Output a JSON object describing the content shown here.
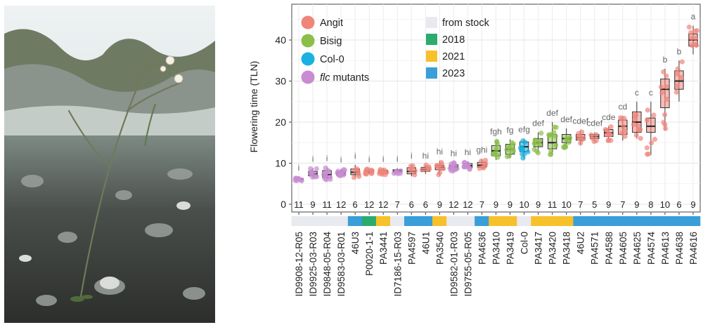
{
  "chart_data": {
    "type": "box",
    "ylabel": "Flowering time (TLN)",
    "ylim": [
      0,
      45
    ],
    "yticks": [
      0,
      10,
      20,
      30,
      40
    ],
    "grid": true,
    "legend_placement": "top-left",
    "groups_legend": [
      {
        "label": "Angit",
        "color": "#f0857a"
      },
      {
        "label": "Bisig",
        "color": "#8cbf4a"
      },
      {
        "label": "Col-0",
        "color": "#1ab1e0"
      },
      {
        "label_italic": "flc",
        "label_rest": " mutants",
        "color": "#c98bd2"
      }
    ],
    "origin_legend": [
      {
        "label": "from stock",
        "color": "#e8eaf0"
      },
      {
        "label": "2018",
        "color": "#2bab6c"
      },
      {
        "label": "2021",
        "color": "#f6c12b"
      },
      {
        "label": "2023",
        "color": "#3a9ed9"
      }
    ],
    "categories": [
      {
        "name": "ID9908-12-R05",
        "group": "flc",
        "origin": "from stock",
        "n": "11",
        "sig": "i",
        "min": 5.6,
        "q1": 5.9,
        "median": 6.1,
        "q3": 6.3,
        "max": 6.7
      },
      {
        "name": "ID9925-03-R03",
        "group": "flc",
        "origin": "from stock",
        "n": "9",
        "sig": "i",
        "min": 6.3,
        "q1": 6.9,
        "median": 7.4,
        "q3": 8.0,
        "max": 8.8
      },
      {
        "name": "ID9848-05-R04",
        "group": "flc",
        "origin": "from stock",
        "n": "11",
        "sig": "i",
        "min": 5.8,
        "q1": 6.5,
        "median": 7.2,
        "q3": 8.2,
        "max": 9.0
      },
      {
        "name": "ID9583-03-R01",
        "group": "flc",
        "origin": "from stock",
        "n": "12",
        "sig": "i",
        "min": 6.5,
        "q1": 7.0,
        "median": 7.5,
        "q3": 8.0,
        "max": 8.6
      },
      {
        "name": "46U3",
        "group": "Angit",
        "origin": "2023",
        "n": "6",
        "sig": "i",
        "min": 6.5,
        "q1": 7.2,
        "median": 7.8,
        "q3": 8.6,
        "max": 9.6
      },
      {
        "name": "P0020-1-1",
        "group": "Angit",
        "origin": "2018",
        "n": "12",
        "sig": "i",
        "min": 7.3,
        "q1": 7.7,
        "median": 8.0,
        "q3": 8.3,
        "max": 8.7
      },
      {
        "name": "PA3441",
        "group": "Angit",
        "origin": "2021",
        "n": "12",
        "sig": "i",
        "min": 7.2,
        "q1": 7.6,
        "median": 8.0,
        "q3": 8.3,
        "max": 8.8
      },
      {
        "name": "ID7186-15-R03",
        "group": "flc",
        "origin": "from stock",
        "n": "7",
        "sig": "i",
        "min": 7.4,
        "q1": 7.8,
        "median": 8.1,
        "q3": 8.4,
        "max": 8.8
      },
      {
        "name": "PA4597",
        "group": "Angit",
        "origin": "2023",
        "n": "6",
        "sig": "i",
        "min": 6.8,
        "q1": 7.4,
        "median": 8.0,
        "q3": 8.9,
        "max": 9.6
      },
      {
        "name": "46U1",
        "group": "Angit",
        "origin": "2023",
        "n": "6",
        "sig": "hi",
        "min": 7.4,
        "q1": 8.0,
        "median": 8.5,
        "q3": 9.0,
        "max": 9.6
      },
      {
        "name": "PA3540",
        "group": "Angit",
        "origin": "2021",
        "n": "9",
        "sig": "hi",
        "min": 7.0,
        "q1": 8.4,
        "median": 9.0,
        "q3": 9.5,
        "max": 10.6
      },
      {
        "name": "ID9582-01-R03",
        "group": "flc",
        "origin": "from stock",
        "n": "12",
        "sig": "hi",
        "min": 8.0,
        "q1": 8.6,
        "median": 9.1,
        "q3": 9.6,
        "max": 10.2
      },
      {
        "name": "ID9755-05-R05",
        "group": "flc",
        "origin": "from stock",
        "n": "12",
        "sig": "hi",
        "min": 8.4,
        "q1": 8.9,
        "median": 9.4,
        "q3": 9.9,
        "max": 10.4
      },
      {
        "name": "PA4636",
        "group": "Angit",
        "origin": "2023",
        "n": "7",
        "sig": "ghi",
        "min": 8.5,
        "q1": 9.0,
        "median": 9.5,
        "q3": 10.2,
        "max": 11.0
      },
      {
        "name": "PA3410",
        "group": "Bisig",
        "origin": "2021",
        "n": "9",
        "sig": "fgh",
        "min": 10.8,
        "q1": 11.8,
        "median": 13.0,
        "q3": 14.3,
        "max": 15.5
      },
      {
        "name": "PA3419",
        "group": "Bisig",
        "origin": "2021",
        "n": "9",
        "sig": "fg",
        "min": 11.2,
        "q1": 12.2,
        "median": 13.4,
        "q3": 14.6,
        "max": 15.8
      },
      {
        "name": "Col-0",
        "group": "Col-0",
        "origin": "from stock",
        "n": "10",
        "sig": "efg",
        "min": 11.0,
        "q1": 12.8,
        "median": 14.0,
        "q3": 15.2,
        "max": 16.0
      },
      {
        "name": "PA3417",
        "group": "Bisig",
        "origin": "2021",
        "n": "9",
        "sig": "def",
        "min": 12.5,
        "q1": 14.0,
        "median": 15.0,
        "q3": 16.0,
        "max": 17.5
      },
      {
        "name": "PA3420",
        "group": "Bisig",
        "origin": "2021",
        "n": "11",
        "sig": "def",
        "min": 12.0,
        "q1": 13.5,
        "median": 15.0,
        "q3": 17.0,
        "max": 20.0
      },
      {
        "name": "PA3418",
        "group": "Bisig",
        "origin": "2021",
        "n": "10",
        "sig": "def",
        "min": 13.5,
        "q1": 15.0,
        "median": 16.0,
        "q3": 17.0,
        "max": 18.5
      },
      {
        "name": "46U2",
        "group": "Angit",
        "origin": "2023",
        "n": "7",
        "sig": "cdef",
        "min": 14.5,
        "q1": 15.6,
        "median": 16.2,
        "q3": 17.0,
        "max": 18.0
      },
      {
        "name": "PA4571",
        "group": "Angit",
        "origin": "2023",
        "n": "5",
        "sig": "cdef",
        "min": 15.0,
        "q1": 16.0,
        "median": 16.5,
        "q3": 17.0,
        "max": 17.5
      },
      {
        "name": "PA4588",
        "group": "Angit",
        "origin": "2023",
        "n": "9",
        "sig": "cde",
        "min": 15.5,
        "q1": 16.5,
        "median": 17.4,
        "q3": 18.2,
        "max": 19.0
      },
      {
        "name": "PA4605",
        "group": "Angit",
        "origin": "2023",
        "n": "7",
        "sig": "cd",
        "min": 15.5,
        "q1": 17.0,
        "median": 19.0,
        "q3": 20.5,
        "max": 21.5
      },
      {
        "name": "PA4625",
        "group": "Angit",
        "origin": "2023",
        "n": "9",
        "sig": "c",
        "min": 16.0,
        "q1": 17.5,
        "median": 20.0,
        "q3": 22.5,
        "max": 25.0
      },
      {
        "name": "PA4574",
        "group": "Angit",
        "origin": "2023",
        "n": "8",
        "sig": "c",
        "min": 12.0,
        "q1": 17.5,
        "median": 19.0,
        "q3": 21.0,
        "max": 25.0
      },
      {
        "name": "PA4613",
        "group": "Angit",
        "origin": "2023",
        "n": "10",
        "sig": "b",
        "min": 18.0,
        "q1": 23.5,
        "median": 28.0,
        "q3": 30.5,
        "max": 33.0
      },
      {
        "name": "PA4638",
        "group": "Angit",
        "origin": "2023",
        "n": "6",
        "sig": "b",
        "min": 25.0,
        "q1": 28.0,
        "median": 30.0,
        "q3": 32.5,
        "max": 35.0
      },
      {
        "name": "PA4616",
        "group": "Angit",
        "origin": "2023",
        "n": "9",
        "sig": "a",
        "min": 36.5,
        "q1": 38.5,
        "median": 40.0,
        "q3": 41.5,
        "max": 43.5
      }
    ]
  }
}
